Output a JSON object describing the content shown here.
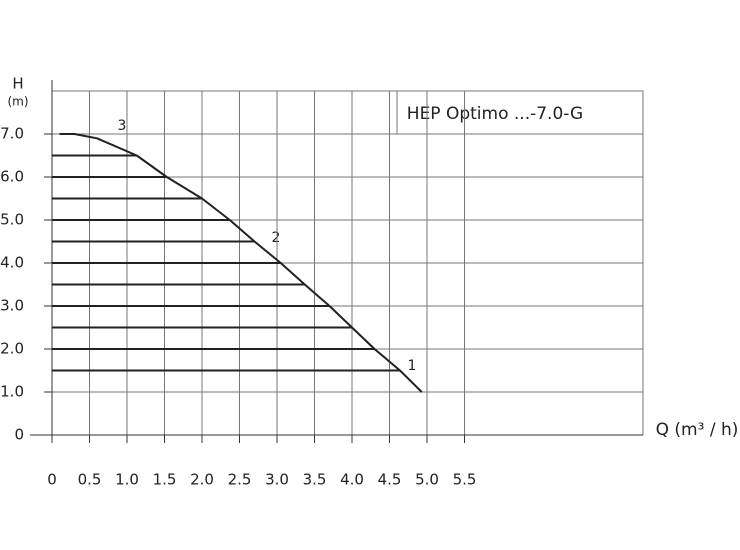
{
  "chart_data": {
    "type": "line",
    "title": "HEP Optimo ...-7.0-G",
    "y_label": "H",
    "y_unit": "(m)",
    "x_label": "Q (m³ / h)",
    "annotations": [
      "1",
      "2",
      "3"
    ],
    "x": [
      0.1,
      0.3,
      0.6,
      1.13,
      1.53,
      2.0,
      2.37,
      2.7,
      3.05,
      3.37,
      3.7,
      4.0,
      4.3,
      4.64,
      4.93
    ],
    "series": [
      {
        "color": "#222222",
        "values": [
          7.0,
          7.0,
          6.9,
          6.5,
          6.0,
          5.5,
          5.0,
          4.5,
          4.0,
          3.5,
          3.0,
          2.5,
          2.0,
          1.5,
          1.0
        ]
      }
    ],
    "levels": [
      6.5,
      6.0,
      5.5,
      5.0,
      4.5,
      4.0,
      3.5,
      3.0,
      2.5,
      2.0,
      1.5
    ],
    "level_ends": [
      1.13,
      1.53,
      2.0,
      2.37,
      2.7,
      3.05,
      3.37,
      3.7,
      4.0,
      4.3,
      4.64
    ],
    "xlim": [
      0,
      7.88
    ],
    "ylim": [
      0,
      8
    ],
    "xticks": [
      0,
      {
        "value": 0.5,
        "label": "0.5"
      },
      {
        "value": 1,
        "label": "1.0"
      },
      {
        "value": 1.5,
        "label": "1.5"
      },
      {
        "value": 2,
        "label": "2.0"
      },
      {
        "value": 2.5,
        "label": "2.5"
      },
      {
        "value": 3,
        "label": "3.0"
      },
      {
        "value": 3.5,
        "label": "3.5"
      },
      {
        "value": 4,
        "label": "4.0"
      },
      {
        "value": 4.5,
        "label": "4.5"
      },
      {
        "value": 5,
        "label": "5.0"
      },
      {
        "value": 5.5,
        "label": "5.5"
      }
    ],
    "yticks": [
      0,
      {
        "value": 1,
        "label": "1.0"
      },
      {
        "value": 2,
        "label": "2.0"
      },
      {
        "value": 3,
        "label": "3.0"
      },
      {
        "value": 4,
        "label": "4.0"
      },
      {
        "value": 5,
        "label": "5.0"
      },
      {
        "value": 6,
        "label": "6.0"
      },
      {
        "value": 7,
        "label": "7.0"
      }
    ],
    "grid": true
  }
}
